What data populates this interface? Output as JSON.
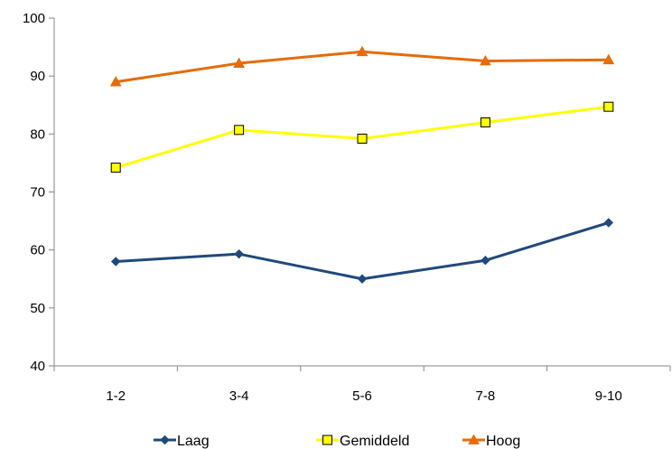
{
  "chart_data": {
    "type": "line",
    "categories": [
      "1-2",
      "3-4",
      "5-6",
      "7-8",
      "9-10"
    ],
    "ylim": [
      40,
      100
    ],
    "yticks": [
      40,
      50,
      60,
      70,
      80,
      90,
      100
    ],
    "grid": false,
    "legend_position": "bottom",
    "series": [
      {
        "name": "Laag",
        "values": [
          58.0,
          59.3,
          55.0,
          58.2,
          64.7
        ],
        "color": "#1F497D",
        "marker": "diamond"
      },
      {
        "name": "Gemiddeld",
        "values": [
          74.2,
          80.7,
          79.2,
          82.0,
          84.7
        ],
        "color": "#FFFF00",
        "marker": "square"
      },
      {
        "name": "Hoog",
        "values": [
          89.0,
          92.2,
          94.2,
          92.6,
          92.8
        ],
        "color": "#E46C0A",
        "marker": "triangle"
      }
    ]
  }
}
